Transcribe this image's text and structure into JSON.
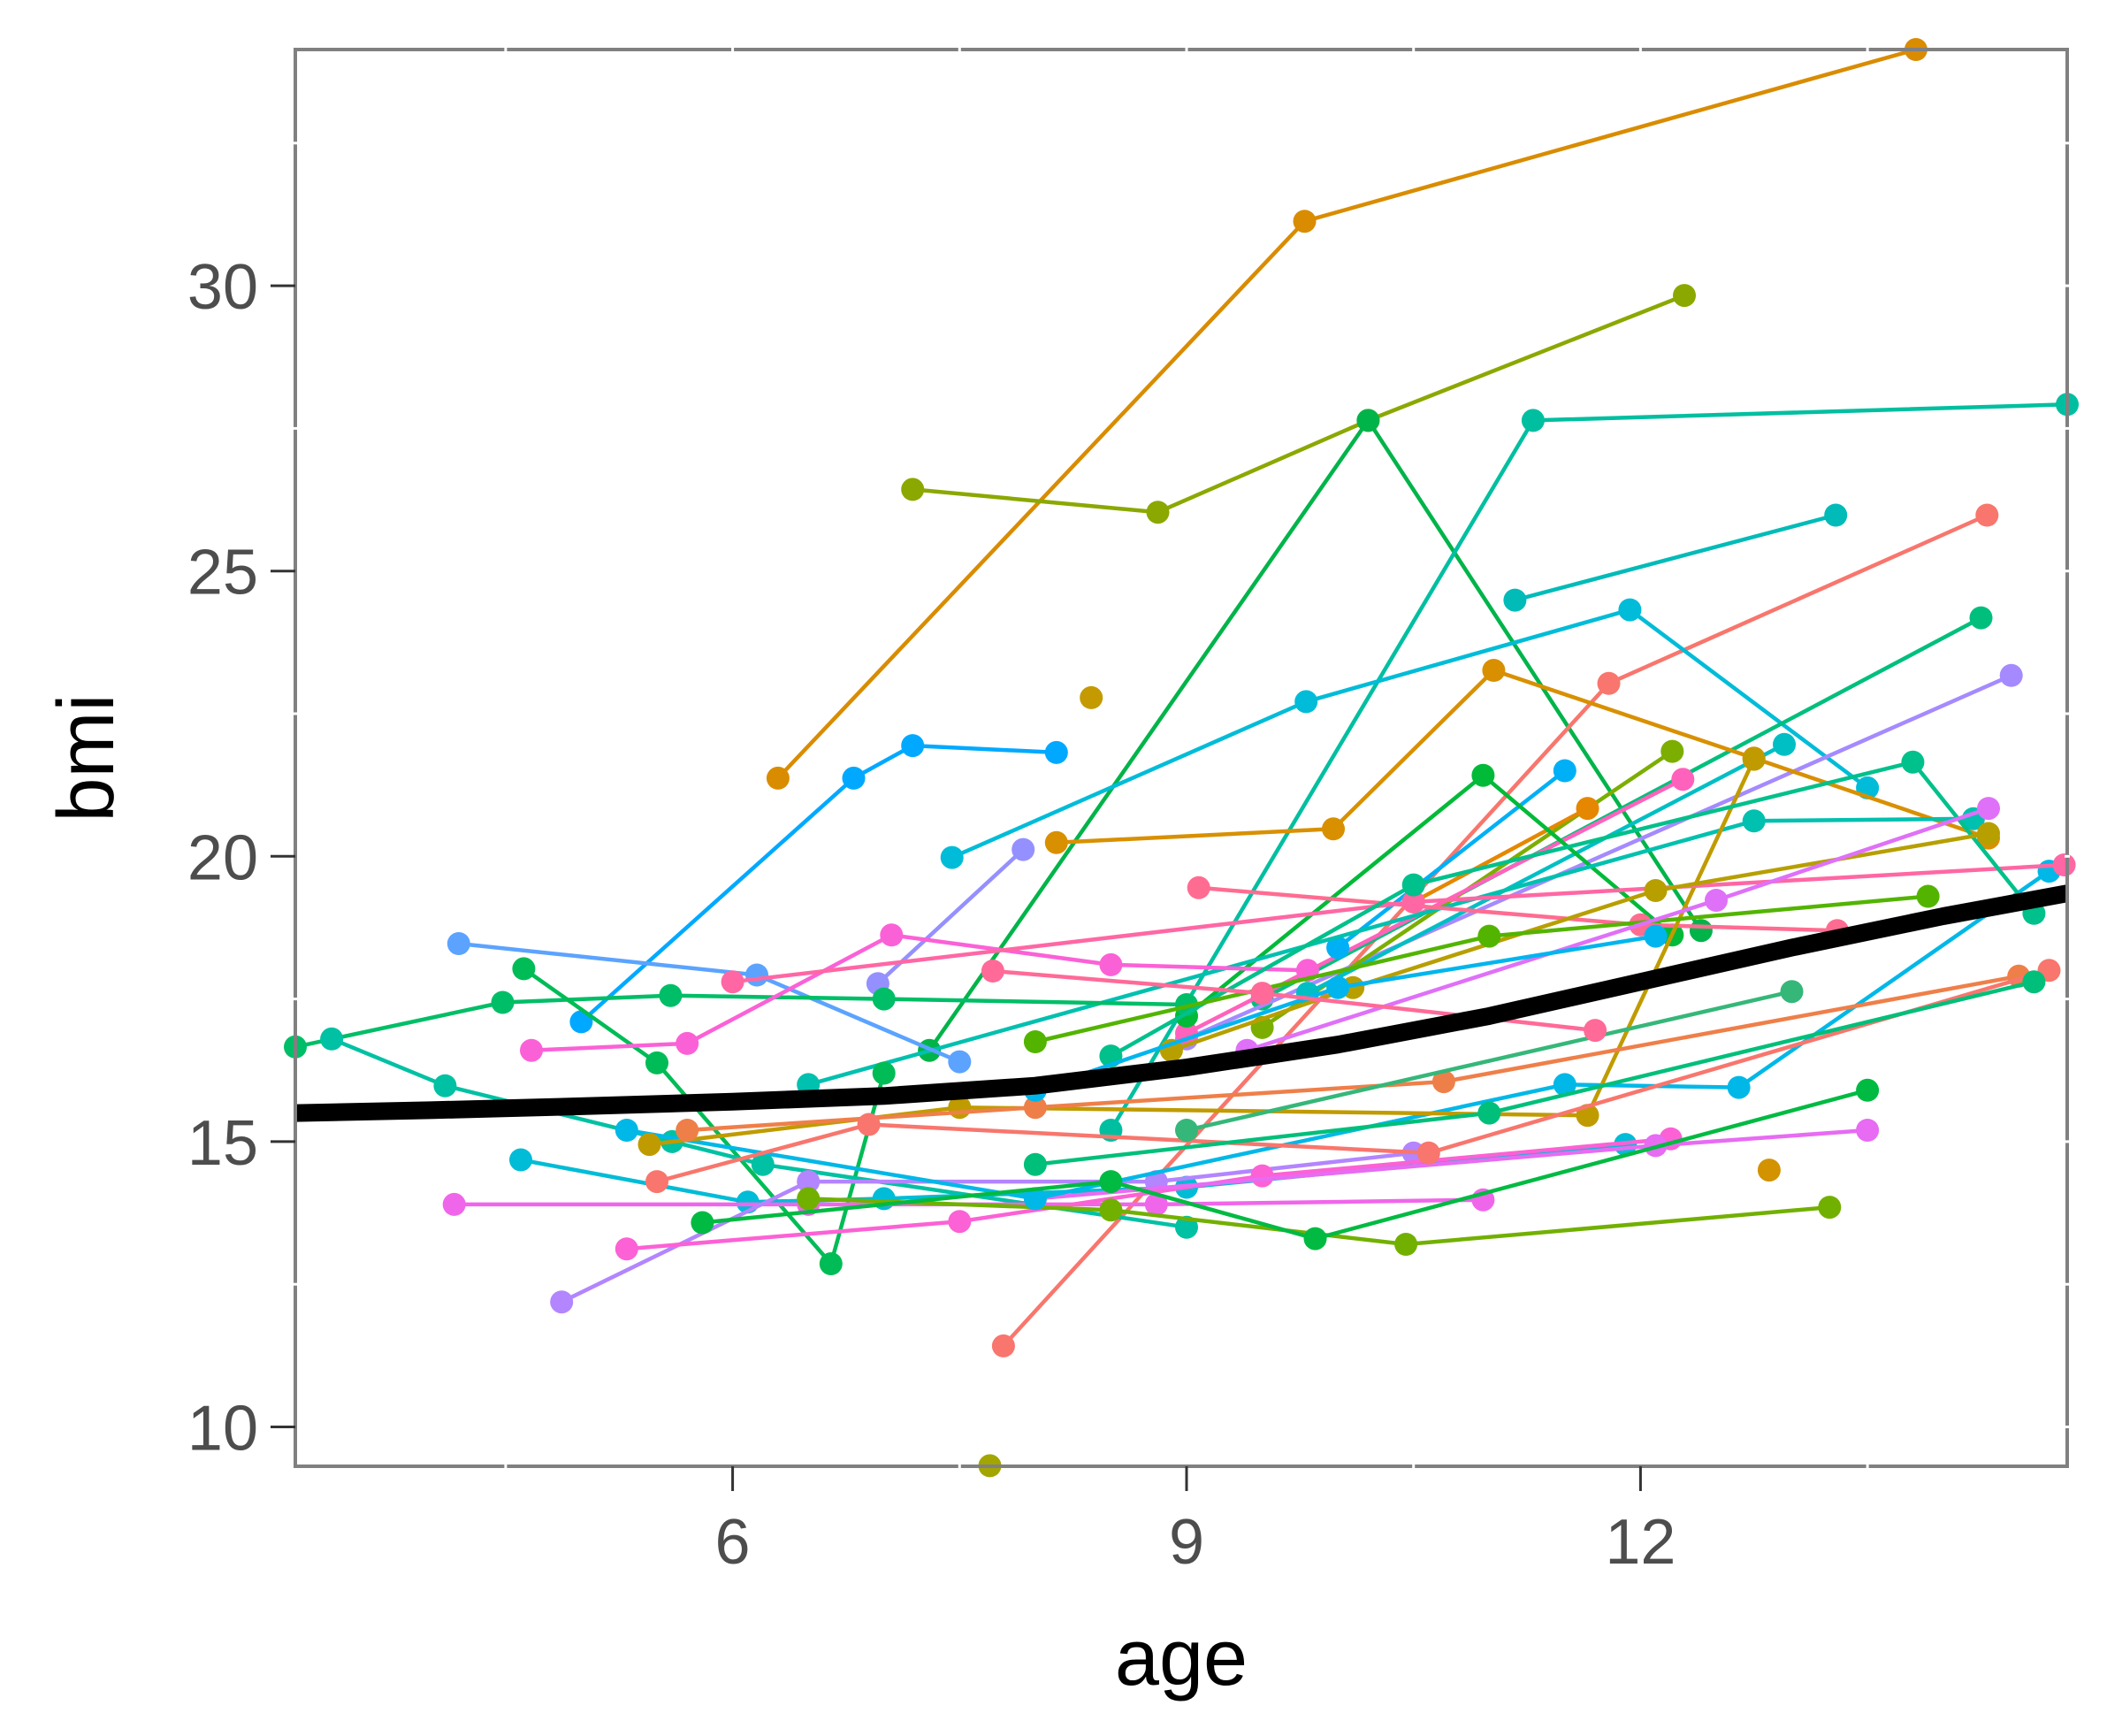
{
  "chart_data": {
    "type": "line",
    "title": "",
    "xlabel": "age",
    "ylabel": "bmi",
    "xlim": [
      3.11,
      14.82
    ],
    "ylim": [
      9.31,
      34.14
    ],
    "x_ticks": [
      6,
      9,
      12
    ],
    "x_tick_labels": [
      "6",
      "9",
      "12"
    ],
    "x_minor_ticks": [
      4.5,
      7.5,
      10.5,
      13.5
    ],
    "y_ticks": [
      10,
      15,
      20,
      25,
      30
    ],
    "y_tick_labels": [
      "10",
      "15",
      "20",
      "25",
      "30"
    ],
    "y_minor_ticks": [
      12.5,
      17.5,
      22.5,
      27.5,
      32.5
    ],
    "grid": false,
    "legend": "none",
    "trend": {
      "name": "smooth",
      "color": "#000000",
      "x": [
        3.11,
        4,
        5,
        6,
        7,
        8,
        9,
        10,
        11,
        12,
        13,
        14,
        14.82
      ],
      "y": [
        15.5,
        15.55,
        15.62,
        15.7,
        15.8,
        15.98,
        16.3,
        16.7,
        17.2,
        17.8,
        18.4,
        18.95,
        19.35
      ]
    },
    "series": [
      {
        "name": "id01",
        "color": "#D98C00",
        "x": [
          6.3,
          9.78,
          13.82
        ],
        "y": [
          21.37,
          31.13,
          34.14
        ]
      },
      {
        "name": "id02",
        "color": "#8BA800",
        "x": [
          7.19,
          8.81,
          10.2,
          12.29
        ],
        "y": [
          26.43,
          26.03,
          27.64,
          29.83
        ]
      },
      {
        "name": "id03",
        "color": "#00B44A",
        "x": [
          7.3,
          10.2,
          12.4
        ],
        "y": [
          16.6,
          27.64,
          18.7
        ]
      },
      {
        "name": "id04",
        "color": "#00BFA0",
        "x": [
          8.5,
          11.29,
          14.82
        ],
        "y": [
          15.2,
          27.64,
          27.92
        ]
      },
      {
        "name": "id05",
        "color": "#00BBB8",
        "x": [
          11.17,
          13.29
        ],
        "y": [
          24.49,
          25.98
        ]
      },
      {
        "name": "id06",
        "color": "#F8766D",
        "x": [
          7.79,
          11.79,
          14.29
        ],
        "y": [
          11.42,
          23.03,
          25.98
        ]
      },
      {
        "name": "id07",
        "color": "#00BCD8",
        "x": [
          7.45,
          9.79,
          11.93,
          13.5
        ],
        "y": [
          19.98,
          22.71,
          24.32,
          21.2
        ]
      },
      {
        "name": "id08",
        "color": "#00BF7D",
        "x": [
          9.5,
          14.25
        ],
        "y": [
          17.5,
          24.18
        ]
      },
      {
        "name": "id09",
        "color": "#A58AFF",
        "x": [
          9.0,
          14.45
        ],
        "y": [
          16.8,
          23.17
        ]
      },
      {
        "name": "id10",
        "color": "#00A9FF",
        "x": [
          5.0,
          6.8,
          7.19,
          8.14
        ],
        "y": [
          17.1,
          21.37,
          21.94,
          21.82
        ]
      },
      {
        "name": "id11",
        "color": "#C49A00",
        "x": [
          8.37
        ],
        "y": [
          22.78
        ]
      },
      {
        "name": "id12",
        "color": "#D89000",
        "x": [
          8.14,
          9.97,
          11.03,
          12.75,
          14.3
        ],
        "y": [
          20.24,
          20.48,
          23.26,
          21.72,
          20.32
        ]
      },
      {
        "name": "id13",
        "color": "#7CAE00",
        "x": [
          9.5,
          12.21
        ],
        "y": [
          17.0,
          21.84
        ]
      },
      {
        "name": "id14",
        "color": "#00BFC4",
        "x": [
          9.8,
          12.95
        ],
        "y": [
          17.6,
          21.96
        ]
      },
      {
        "name": "id15",
        "color": "#FF62BC",
        "x": [
          9.0,
          12.28
        ],
        "y": [
          16.9,
          21.35
        ]
      },
      {
        "name": "id16",
        "color": "#00B0F6",
        "x": [
          10.0,
          11.5
        ],
        "y": [
          18.4,
          21.5
        ]
      },
      {
        "name": "id17",
        "color": "#E58700",
        "x": [
          10.5,
          11.65
        ],
        "y": [
          19.2,
          20.84
        ]
      },
      {
        "name": "id18",
        "color": "#00BA38",
        "x": [
          9.0,
          10.96,
          12.21
        ],
        "y": [
          17.2,
          21.42,
          18.62
        ]
      },
      {
        "name": "id19",
        "color": "#9590FF",
        "x": [
          6.96,
          7.92
        ],
        "y": [
          17.77,
          20.12
        ]
      },
      {
        "name": "id20",
        "color": "#00C0AF",
        "x": [
          6.5,
          12.75,
          14.2
        ],
        "y": [
          16.0,
          20.62,
          20.66
        ]
      },
      {
        "name": "id21",
        "color": "#FF6C91",
        "x": [
          9.08,
          12.0,
          13.3
        ],
        "y": [
          19.45,
          18.8,
          18.7
        ]
      },
      {
        "name": "id22",
        "color": "#5BA3FF",
        "x": [
          4.19,
          6.16,
          7.5
        ],
        "y": [
          18.47,
          17.92,
          16.4
        ]
      },
      {
        "name": "id23",
        "color": "#00BE67",
        "x": [
          3.11,
          4.48,
          5.59,
          7.0,
          9.0
        ],
        "y": [
          16.66,
          17.44,
          17.56,
          17.5,
          17.4
        ]
      },
      {
        "name": "id24",
        "color": "#00BC56",
        "x": [
          4.62,
          5.5,
          6.65,
          7.0
        ],
        "y": [
          18.03,
          16.38,
          12.86,
          16.2
        ]
      },
      {
        "name": "id25",
        "color": "#00C1A3",
        "x": [
          3.35,
          4.1,
          5.6,
          6.2,
          9.0
        ],
        "y": [
          16.8,
          15.98,
          15.0,
          14.6,
          13.5
        ]
      },
      {
        "name": "id26",
        "color": "#FB61D7",
        "x": [
          4.67,
          5.7,
          7.05,
          8.5,
          9.8
        ],
        "y": [
          16.6,
          16.72,
          18.62,
          18.1,
          18.0
        ]
      },
      {
        "name": "id27",
        "color": "#00BCD6",
        "x": [
          4.6,
          6.1,
          7.0,
          9.0,
          11.9
        ],
        "y": [
          14.68,
          13.94,
          14.0,
          14.2,
          14.95
        ]
      },
      {
        "name": "id28",
        "color": "#F066EA",
        "x": [
          4.16,
          6.5,
          8.8,
          10.96
        ],
        "y": [
          13.9,
          13.9,
          13.9,
          13.98
        ]
      },
      {
        "name": "id29",
        "color": "#B385FF",
        "x": [
          4.87,
          6.5,
          8.8,
          10.5
        ],
        "y": [
          12.19,
          14.3,
          14.3,
          14.8
        ]
      },
      {
        "name": "id30",
        "color": "#FC61D5",
        "x": [
          5.3,
          7.5,
          9.5,
          12.2
        ],
        "y": [
          13.12,
          13.6,
          14.4,
          15.05
        ]
      },
      {
        "name": "id31",
        "color": "#E76BF3",
        "x": [
          8.0,
          12.1,
          13.5
        ],
        "y": [
          14.0,
          14.93,
          15.2
        ]
      },
      {
        "name": "id32",
        "color": "#72B000",
        "x": [
          6.5,
          8.5,
          10.45,
          13.25
        ],
        "y": [
          14.0,
          13.8,
          13.2,
          13.85
        ]
      },
      {
        "name": "id33",
        "color": "#00B8E7",
        "x": [
          5.3,
          8.0,
          11.5,
          12.65,
          14.7
        ],
        "y": [
          15.2,
          14.0,
          16.0,
          15.95,
          19.74
        ]
      },
      {
        "name": "id34",
        "color": "#C09B00",
        "x": [
          5.45,
          7.5,
          11.65,
          12.75
        ],
        "y": [
          14.95,
          15.6,
          15.46,
          21.7
        ]
      },
      {
        "name": "id35",
        "color": "#EF7F49",
        "x": [
          5.7,
          8.0,
          10.7,
          14.5
        ],
        "y": [
          15.2,
          15.6,
          16.05,
          17.9
        ]
      },
      {
        "name": "id36",
        "color": "#F8766D",
        "x": [
          5.5,
          6.9,
          10.6,
          14.7
        ],
        "y": [
          14.3,
          15.3,
          14.8,
          18.0
        ]
      },
      {
        "name": "id37",
        "color": "#00BA42",
        "x": [
          5.8,
          8.5,
          9.85,
          13.5
        ],
        "y": [
          13.58,
          14.3,
          13.3,
          15.9
        ]
      },
      {
        "name": "id38",
        "color": "#00BF7A",
        "x": [
          8.0,
          11.0,
          14.6
        ],
        "y": [
          14.6,
          15.5,
          17.8
        ]
      },
      {
        "name": "id39",
        "color": "#35B779",
        "x": [
          9.0,
          13.0
        ],
        "y": [
          15.2,
          17.63
        ]
      },
      {
        "name": "id40",
        "color": "#D39200",
        "x": [
          12.85
        ],
        "y": [
          14.5
        ]
      },
      {
        "name": "id41",
        "color": "#A3A500",
        "x": [
          7.7
        ],
        "y": [
          9.32
        ]
      },
      {
        "name": "id42",
        "color": "#FF67A4",
        "x": [
          6.0,
          10.5,
          14.8
        ],
        "y": [
          17.8,
          19.2,
          19.85
        ]
      },
      {
        "name": "id43",
        "color": "#00C08B",
        "x": [
          8.5,
          10.5,
          13.8,
          14.6
        ],
        "y": [
          16.5,
          19.5,
          21.65,
          19.0
        ]
      },
      {
        "name": "id44",
        "color": "#B79F00",
        "x": [
          8.9,
          10.1,
          12.1,
          14.3
        ],
        "y": [
          16.6,
          17.7,
          19.4,
          20.4
        ]
      },
      {
        "name": "id45",
        "color": "#53B400",
        "x": [
          8.0,
          11.0,
          13.9
        ],
        "y": [
          16.75,
          18.6,
          19.3
        ]
      },
      {
        "name": "id46",
        "color": "#DF70F8",
        "x": [
          9.4,
          12.5,
          14.3
        ],
        "y": [
          16.6,
          19.23,
          20.84
        ]
      },
      {
        "name": "id47",
        "color": "#00B5EE",
        "x": [
          8.0,
          10.0,
          12.1
        ],
        "y": [
          15.9,
          17.7,
          18.6
        ]
      },
      {
        "name": "id48",
        "color": "#FF6A98",
        "x": [
          7.72,
          9.5,
          11.7
        ],
        "y": [
          17.99,
          17.6,
          16.95
        ]
      }
    ]
  }
}
